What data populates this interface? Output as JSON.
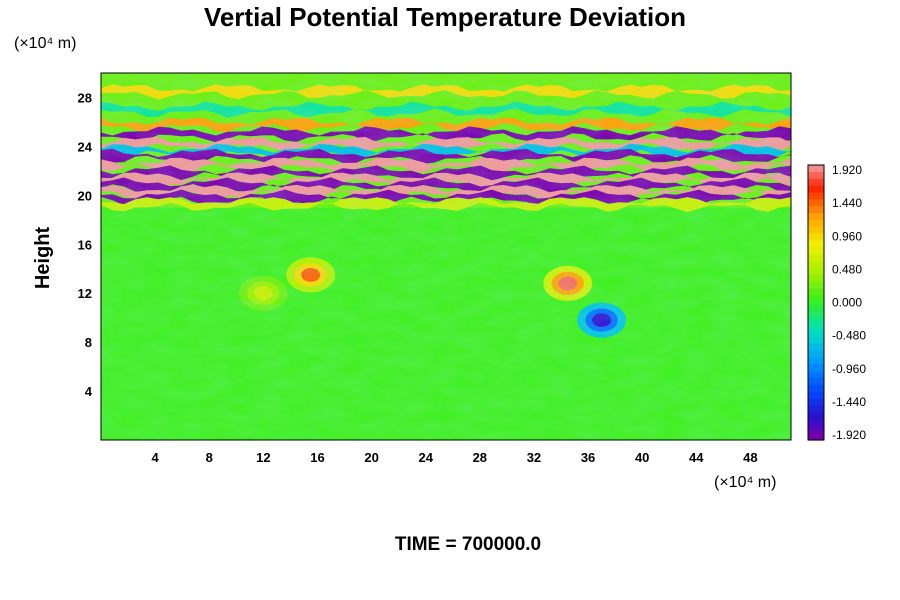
{
  "chart_data": {
    "type": "heatmap",
    "title": "Vertial Potential Temperature Deviation",
    "ylabel": "Height",
    "y_unit": "(×10⁴ m)",
    "x_unit": "(×10⁴ m)",
    "x_ticks": [
      "4",
      "8",
      "12",
      "16",
      "20",
      "24",
      "28",
      "32",
      "36",
      "40",
      "44",
      "48"
    ],
    "y_ticks": [
      "4",
      "8",
      "12",
      "16",
      "20",
      "24",
      "28"
    ],
    "xlim": [
      0,
      51
    ],
    "ylim": [
      0,
      30
    ],
    "colorbar": {
      "ticks": [
        "1.920",
        "1.440",
        "0.960",
        "0.480",
        "0.000",
        "-0.480",
        "-0.960",
        "-1.440",
        "-1.920"
      ],
      "range": [
        -1.92,
        1.92
      ]
    },
    "bands": [
      {
        "y": 28.5,
        "value": 0.9
      },
      {
        "y": 27.0,
        "value": -0.3
      },
      {
        "y": 25.8,
        "value": 1.2
      },
      {
        "y": 25.0,
        "value": -1.9
      },
      {
        "y": 24.2,
        "value": 1.9
      },
      {
        "y": 23.6,
        "value": -0.6
      },
      {
        "y": 23.2,
        "value": -1.9
      },
      {
        "y": 22.5,
        "value": 1.9
      },
      {
        "y": 21.8,
        "value": -1.9
      },
      {
        "y": 21.3,
        "value": 1.9
      },
      {
        "y": 20.8,
        "value": -1.9
      },
      {
        "y": 20.3,
        "value": 1.9
      },
      {
        "y": 19.8,
        "value": -1.9
      },
      {
        "y": 19.3,
        "value": 0.6
      }
    ],
    "anomalies": [
      {
        "x": 34.5,
        "y": 12.8,
        "value": 1.8
      },
      {
        "x": 15.5,
        "y": 13.5,
        "value": 1.4
      },
      {
        "x": 37.0,
        "y": 9.8,
        "value": -1.6
      },
      {
        "x": 12.0,
        "y": 12.0,
        "value": 0.6
      }
    ]
  },
  "footer": {
    "time_label": "TIME = 700000.0"
  }
}
